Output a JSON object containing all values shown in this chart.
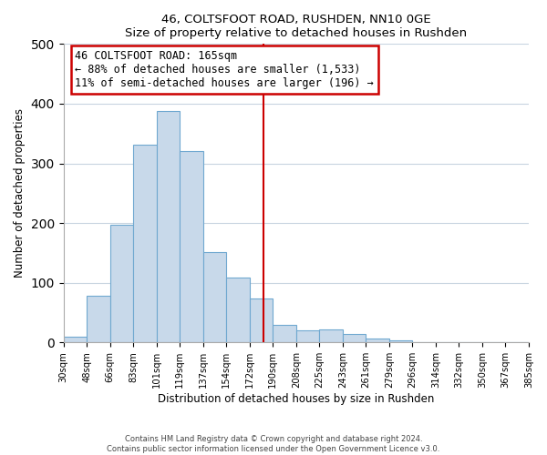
{
  "title": "46, COLTSFOOT ROAD, RUSHDEN, NN10 0GE",
  "subtitle": "Size of property relative to detached houses in Rushden",
  "xlabel": "Distribution of detached houses by size in Rushden",
  "ylabel": "Number of detached properties",
  "bin_labels": [
    "30sqm",
    "48sqm",
    "66sqm",
    "83sqm",
    "101sqm",
    "119sqm",
    "137sqm",
    "154sqm",
    "172sqm",
    "190sqm",
    "208sqm",
    "225sqm",
    "243sqm",
    "261sqm",
    "279sqm",
    "296sqm",
    "314sqm",
    "332sqm",
    "350sqm",
    "367sqm",
    "385sqm"
  ],
  "bin_values": [
    10,
    78,
    197,
    332,
    387,
    320,
    151,
    108,
    73,
    30,
    20,
    22,
    14,
    6,
    3,
    1,
    0,
    0,
    0,
    1
  ],
  "bar_color": "#c8d9ea",
  "bar_edge_color": "#6fa8d0",
  "vline_color": "#cc0000",
  "annotation_title": "46 COLTSFOOT ROAD: 165sqm",
  "annotation_line1": "← 88% of detached houses are smaller (1,533)",
  "annotation_line2": "11% of semi-detached houses are larger (196) →",
  "annotation_box_color": "#ffffff",
  "annotation_box_edge": "#cc0000",
  "ylim": [
    0,
    500
  ],
  "grid_color": "#c8d4e0",
  "footer1": "Contains HM Land Registry data © Crown copyright and database right 2024.",
  "footer2": "Contains public sector information licensed under the Open Government Licence v3.0."
}
